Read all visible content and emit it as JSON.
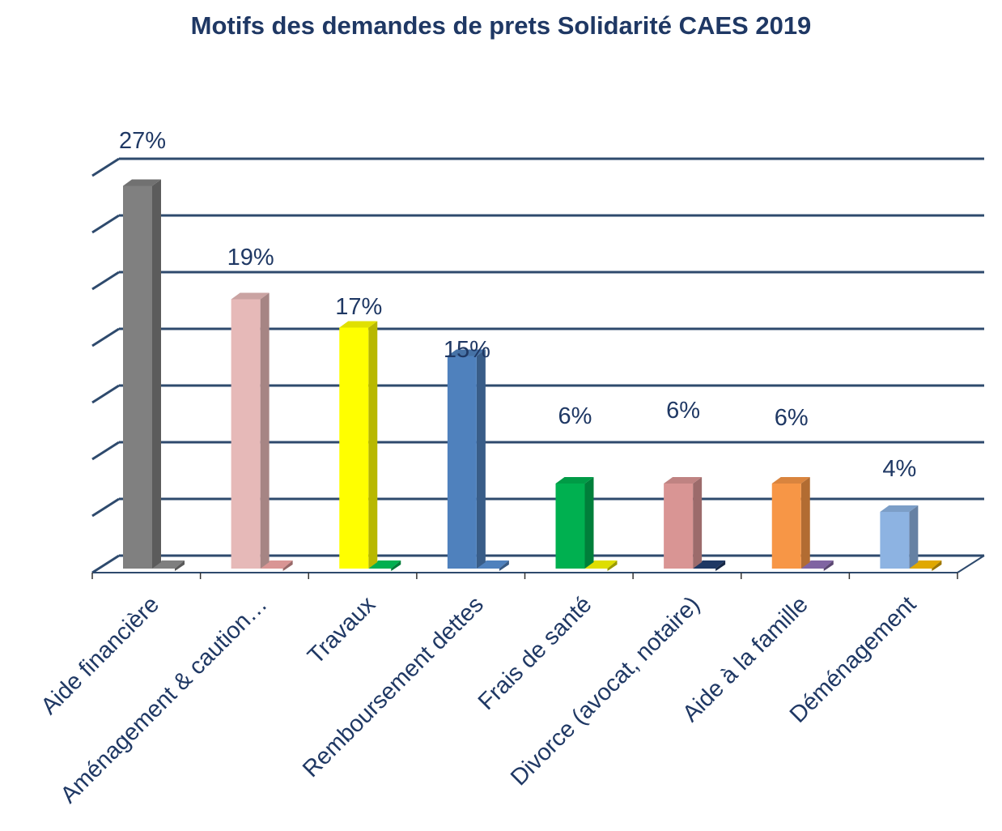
{
  "chart_data": {
    "type": "bar",
    "title": "Motifs des demandes de prets Solidarité CAES 2019",
    "xlabel": "",
    "ylabel": "",
    "ylim": [
      0,
      28
    ],
    "grid": true,
    "legend": "none",
    "categories": [
      "Aide financière",
      "Aménagement & caution…",
      "Travaux",
      "Remboursement dettes",
      "Frais de santé",
      "Divorce (avocat, notaire)",
      "Aide à la famille",
      "Déménagement"
    ],
    "values": [
      27,
      19,
      17,
      15,
      6,
      6,
      6,
      4
    ],
    "data_labels": [
      "27%",
      "19%",
      "17%",
      "15%",
      "6%",
      "6%",
      "6%",
      "4%"
    ],
    "colors": [
      "#808080",
      "#e6b9b8",
      "#ffff00",
      "#4f81bd",
      "#00b050",
      "#d99594",
      "#f79646",
      "#8db3e2"
    ],
    "stub_colors": [
      "#7f7f7f",
      "#d99594",
      "#00b050",
      "#4f81bd",
      "#dede00",
      "#1f3864",
      "#8064a2",
      "#e0a800"
    ],
    "colors_meta": {
      "title": "#1f3864",
      "label": "#1f3864",
      "grid": "#2e4a6d"
    }
  }
}
